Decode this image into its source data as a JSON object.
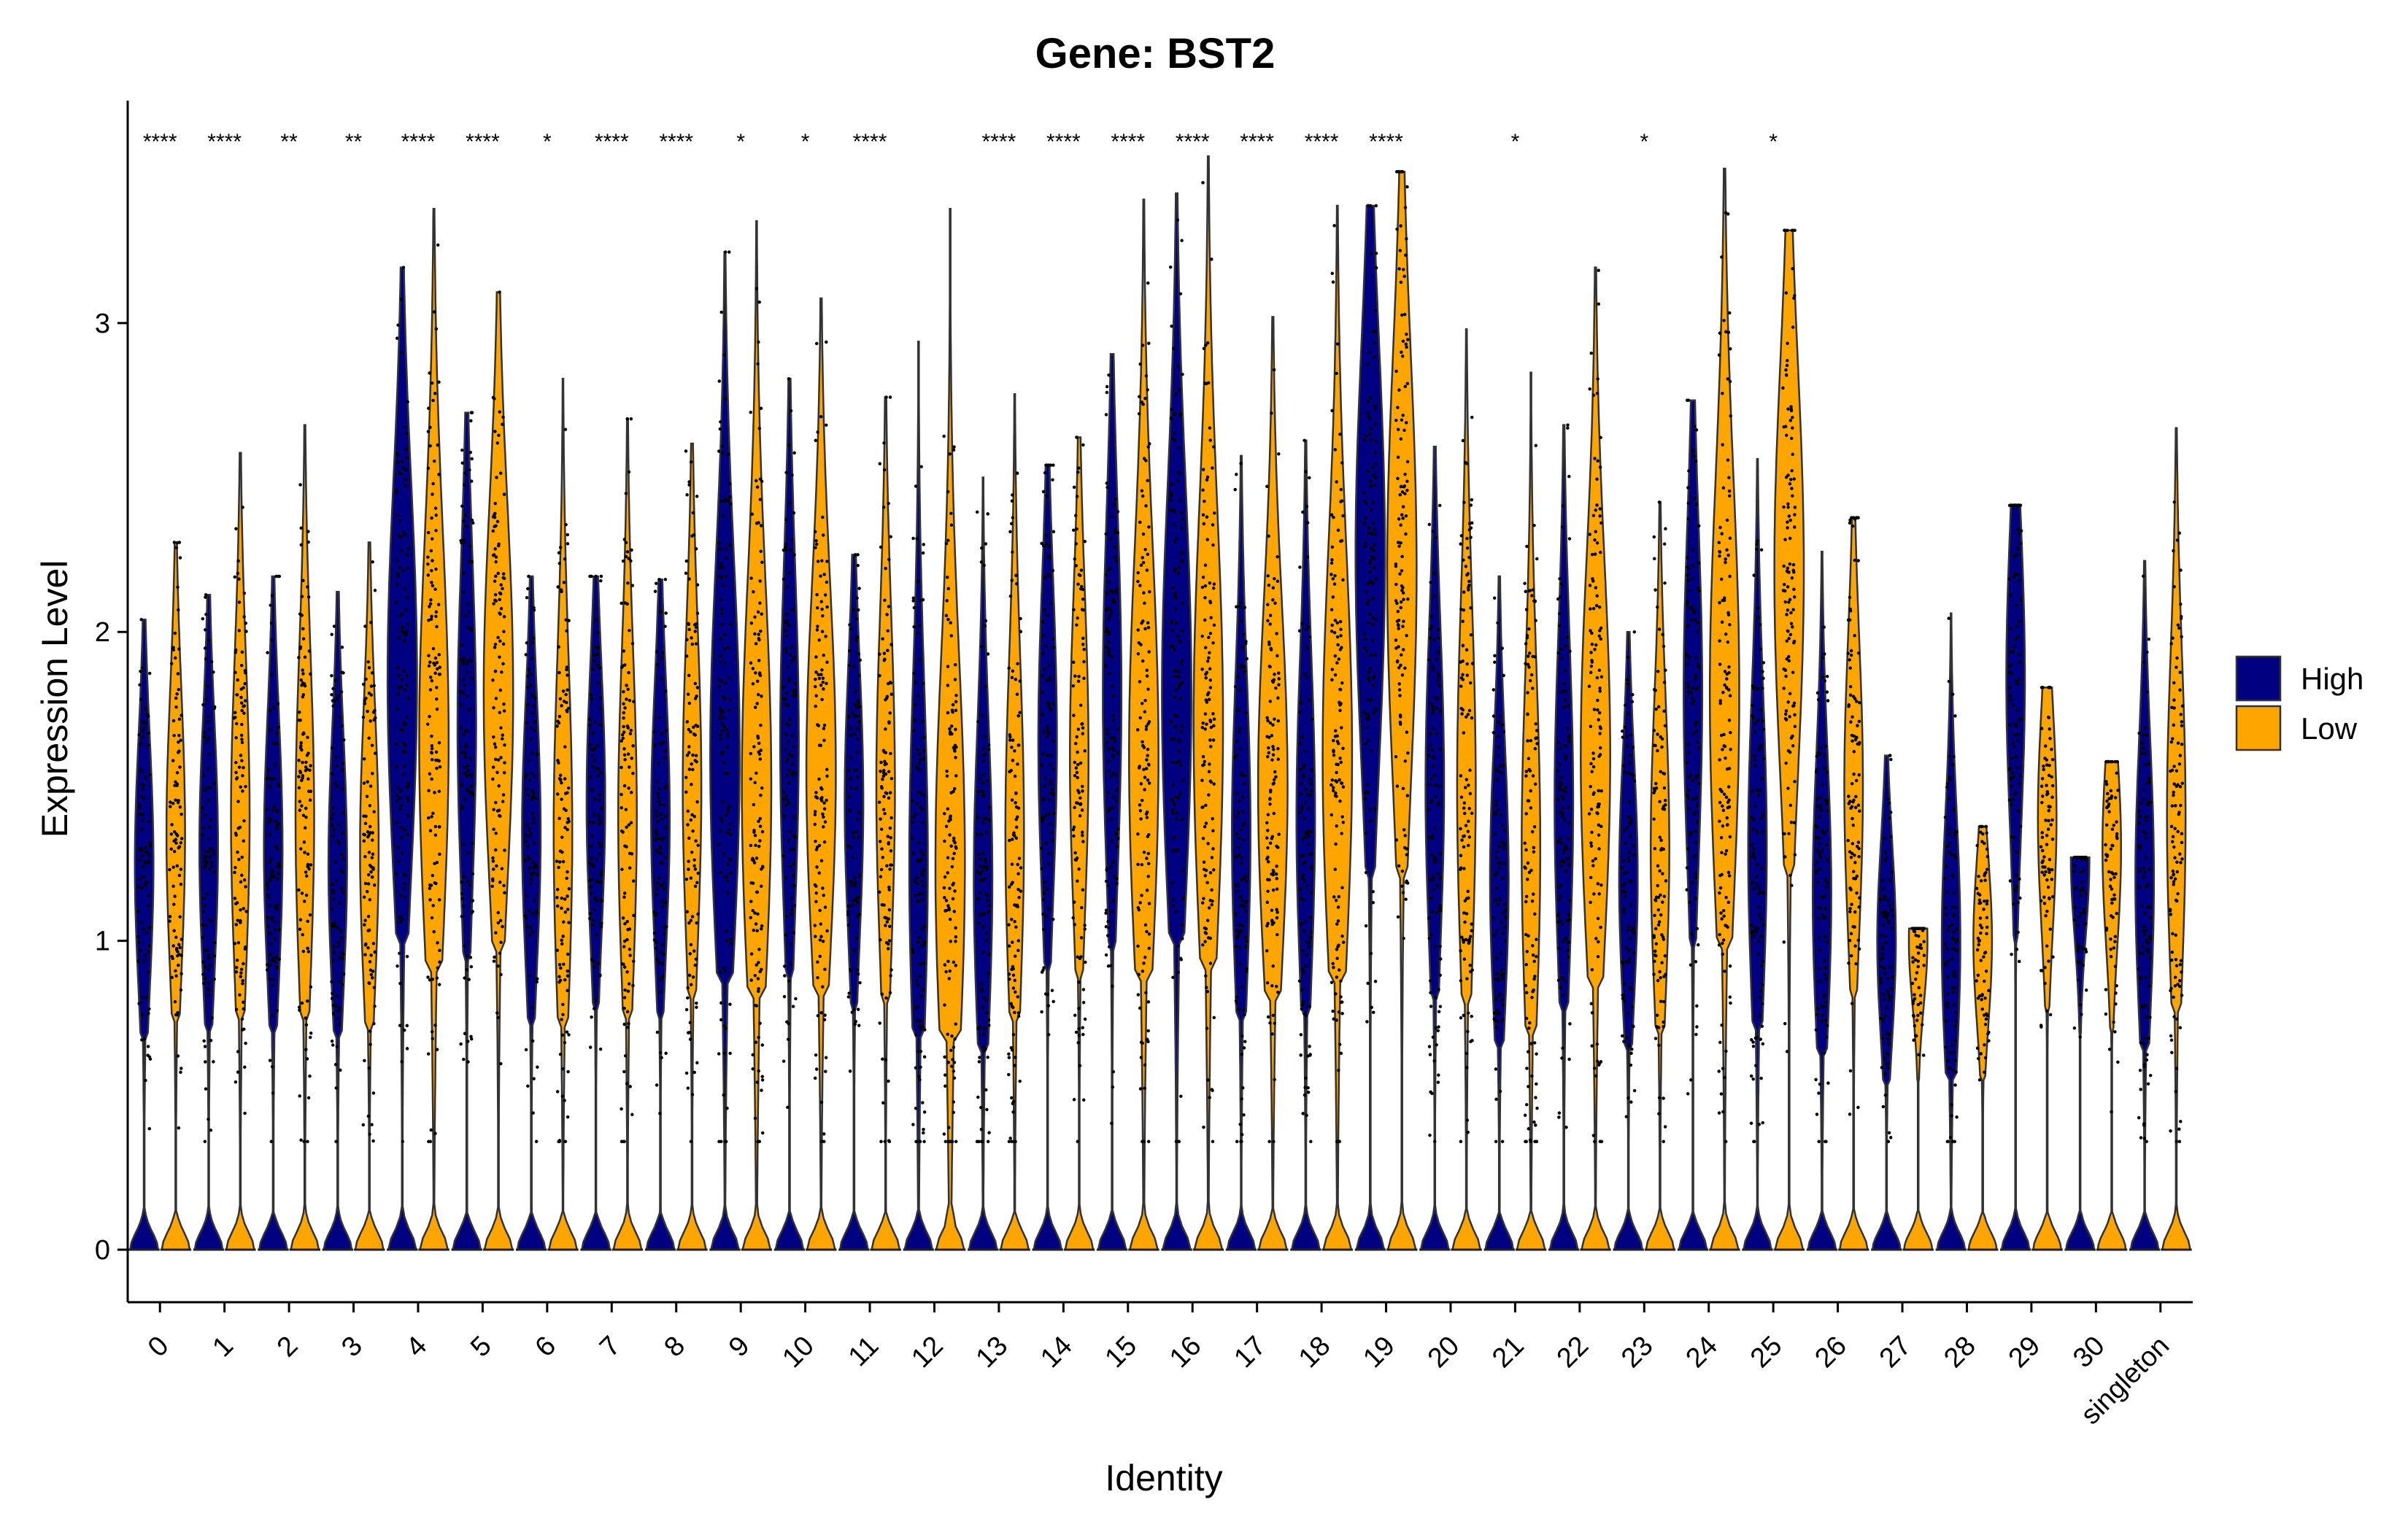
{
  "chart_data": {
    "type": "violin",
    "title": "Gene: BST2",
    "xlabel": "Identity",
    "ylabel": "Expression Level",
    "ylim": [
      -0.17,
      3.72
    ],
    "yticks": [
      0,
      1,
      2,
      3
    ],
    "categories": [
      "0",
      "1",
      "2",
      "3",
      "4",
      "5",
      "6",
      "7",
      "8",
      "9",
      "10",
      "11",
      "12",
      "13",
      "14",
      "15",
      "16",
      "17",
      "18",
      "19",
      "20",
      "21",
      "22",
      "23",
      "24",
      "25",
      "26",
      "27",
      "28",
      "29",
      "30",
      "singleton"
    ],
    "significance": [
      "****",
      "****",
      "**",
      "**",
      "****",
      "****",
      "*",
      "****",
      "****",
      "*",
      "*",
      "****",
      "",
      "****",
      "****",
      "****",
      "****",
      "****",
      "****",
      "****",
      "",
      "*",
      "",
      "*",
      "",
      "*",
      "",
      "",
      "",
      "",
      "",
      ""
    ],
    "series": [
      {
        "name": "High",
        "color": "#000080",
        "max": [
          2.04,
          2.12,
          2.18,
          2.13,
          3.18,
          2.71,
          2.18,
          2.18,
          2.17,
          3.23,
          2.82,
          2.25,
          2.94,
          2.5,
          2.54,
          2.9,
          3.42,
          2.57,
          2.62,
          3.38,
          2.6,
          2.18,
          2.67,
          2.0,
          2.75,
          2.56,
          2.26,
          1.6,
          2.06,
          2.41,
          1.27,
          2.23
        ],
        "nonzero_center": [
          1.25,
          1.3,
          1.3,
          1.25,
          1.85,
          1.7,
          1.35,
          1.45,
          1.4,
          1.6,
          1.65,
          1.45,
          1.25,
          1.2,
          1.65,
          1.8,
          1.8,
          1.35,
          1.4,
          2.25,
          1.5,
          1.2,
          1.45,
          1.2,
          1.8,
          1.3,
          1.15,
          1.0,
          1.0,
          1.85,
          1.27,
          1.2
        ]
      },
      {
        "name": "Low",
        "color": "#FFA500",
        "max": [
          2.29,
          2.58,
          2.67,
          2.29,
          3.37,
          3.1,
          2.82,
          2.69,
          2.61,
          3.33,
          3.08,
          2.76,
          3.37,
          2.77,
          2.63,
          3.4,
          3.54,
          3.02,
          3.38,
          3.49,
          2.98,
          2.84,
          3.18,
          2.42,
          3.5,
          3.3,
          2.37,
          1.04,
          1.37,
          1.82,
          1.58,
          2.66
        ],
        "nonzero_center": [
          1.35,
          1.4,
          1.4,
          1.3,
          1.65,
          1.8,
          1.35,
          1.4,
          1.5,
          1.5,
          1.55,
          1.5,
          1.25,
          1.35,
          1.6,
          1.6,
          1.7,
          1.5,
          1.6,
          2.2,
          1.5,
          1.3,
          1.6,
          1.3,
          1.8,
          2.2,
          1.5,
          1.0,
          1.0,
          1.4,
          1.3,
          1.4
        ]
      }
    ],
    "legend": {
      "position": "right",
      "entries": [
        "High",
        "Low"
      ]
    },
    "grid": false
  }
}
